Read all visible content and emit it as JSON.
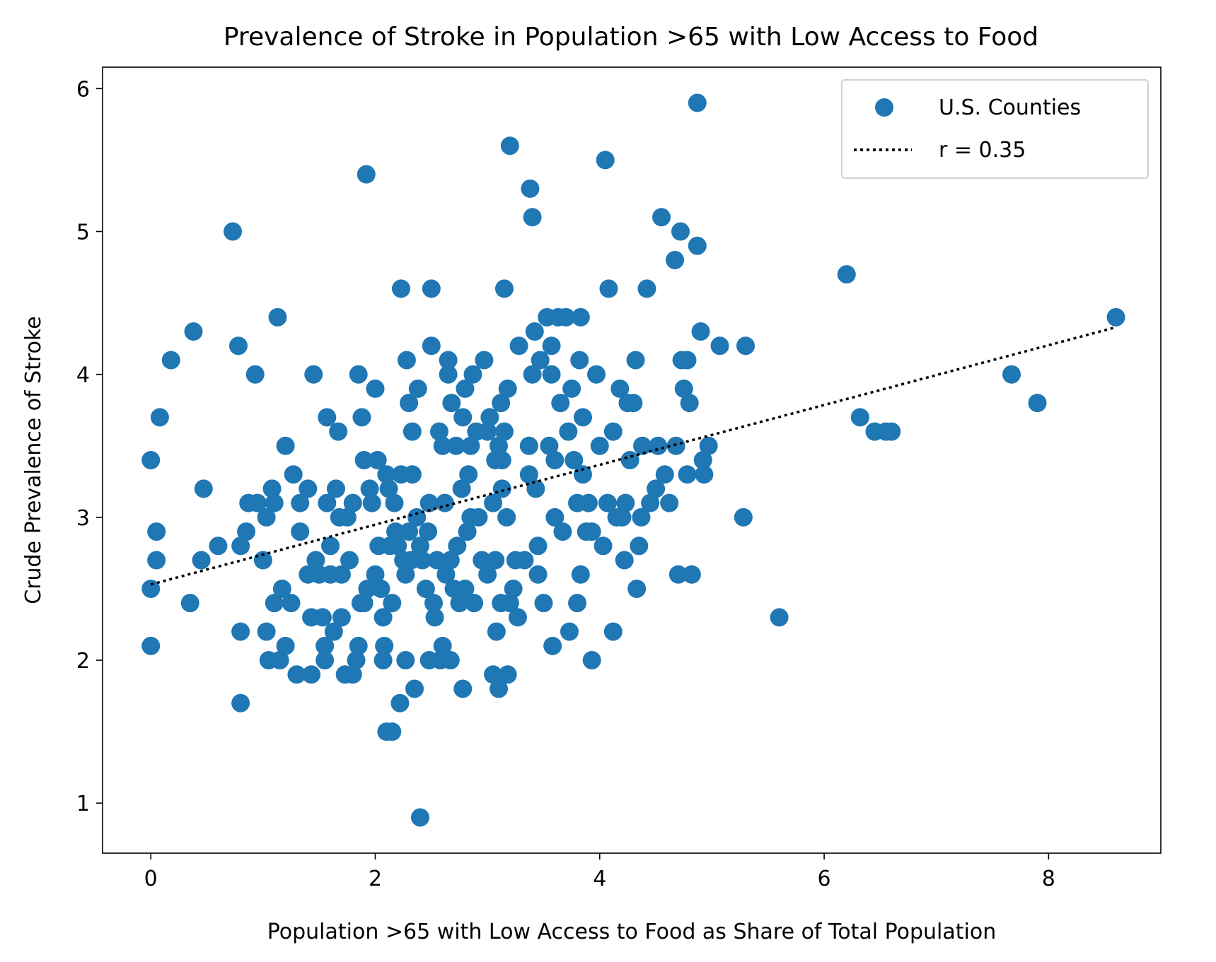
{
  "chart_data": {
    "type": "scatter",
    "title": "Prevalence of Stroke in Population >65 with Low Access to Food",
    "xlabel": "Population >65 with Low Access to Food as Share of Total Population",
    "ylabel": "Crude Prevalence of Stroke",
    "xlim": [
      -0.43,
      9.0
    ],
    "ylim": [
      0.65,
      6.15
    ],
    "xticks": [
      0,
      2,
      4,
      6,
      8
    ],
    "yticks": [
      1,
      2,
      3,
      4,
      5,
      6
    ],
    "grid": false,
    "legend_position": "top-right",
    "colors": {
      "points": "#1f77b4",
      "trendline": "#000000"
    },
    "series": [
      {
        "name": "U.S. Counties",
        "kind": "scatter",
        "points": [
          [
            0.0,
            3.4
          ],
          [
            0.0,
            2.5
          ],
          [
            0.0,
            2.1
          ],
          [
            0.05,
            2.9
          ],
          [
            0.05,
            2.7
          ],
          [
            0.08,
            3.7
          ],
          [
            0.18,
            4.1
          ],
          [
            0.35,
            2.4
          ],
          [
            0.38,
            4.3
          ],
          [
            0.45,
            2.7
          ],
          [
            0.47,
            3.2
          ],
          [
            0.6,
            2.8
          ],
          [
            0.73,
            5.0
          ],
          [
            0.78,
            4.2
          ],
          [
            0.8,
            2.2
          ],
          [
            0.8,
            1.7
          ],
          [
            0.8,
            2.8
          ],
          [
            0.85,
            2.9
          ],
          [
            0.87,
            3.1
          ],
          [
            0.93,
            4.0
          ],
          [
            0.95,
            3.1
          ],
          [
            1.0,
            2.7
          ],
          [
            1.03,
            3.0
          ],
          [
            1.03,
            2.2
          ],
          [
            1.05,
            2.0
          ],
          [
            1.08,
            3.2
          ],
          [
            1.1,
            2.4
          ],
          [
            1.1,
            3.1
          ],
          [
            1.13,
            4.4
          ],
          [
            1.15,
            2.0
          ],
          [
            1.17,
            2.5
          ],
          [
            1.2,
            3.5
          ],
          [
            1.2,
            2.1
          ],
          [
            1.25,
            2.4
          ],
          [
            1.27,
            3.3
          ],
          [
            1.3,
            1.9
          ],
          [
            1.33,
            2.9
          ],
          [
            1.33,
            3.1
          ],
          [
            1.4,
            2.6
          ],
          [
            1.4,
            3.2
          ],
          [
            1.43,
            1.9
          ],
          [
            1.43,
            2.3
          ],
          [
            1.45,
            4.0
          ],
          [
            1.47,
            2.7
          ],
          [
            1.5,
            2.6
          ],
          [
            1.53,
            2.3
          ],
          [
            1.55,
            2.1
          ],
          [
            1.55,
            2.0
          ],
          [
            1.57,
            3.7
          ],
          [
            1.57,
            3.1
          ],
          [
            1.6,
            2.8
          ],
          [
            1.6,
            2.6
          ],
          [
            1.63,
            2.2
          ],
          [
            1.65,
            3.2
          ],
          [
            1.67,
            3.6
          ],
          [
            1.68,
            3.0
          ],
          [
            1.7,
            2.3
          ],
          [
            1.7,
            2.6
          ],
          [
            1.73,
            1.9
          ],
          [
            1.75,
            3.0
          ],
          [
            1.77,
            2.7
          ],
          [
            1.8,
            3.1
          ],
          [
            1.8,
            1.9
          ],
          [
            1.83,
            2.0
          ],
          [
            1.85,
            4.0
          ],
          [
            1.85,
            2.1
          ],
          [
            1.87,
            2.4
          ],
          [
            1.88,
            3.7
          ],
          [
            1.9,
            3.4
          ],
          [
            1.9,
            2.4
          ],
          [
            1.92,
            5.4
          ],
          [
            1.93,
            2.5
          ],
          [
            1.95,
            3.2
          ],
          [
            1.97,
            3.1
          ],
          [
            2.0,
            3.9
          ],
          [
            2.0,
            2.6
          ],
          [
            2.02,
            3.4
          ],
          [
            2.03,
            2.8
          ],
          [
            2.05,
            2.5
          ],
          [
            2.07,
            2.0
          ],
          [
            2.07,
            2.3
          ],
          [
            2.08,
            2.1
          ],
          [
            2.1,
            1.5
          ],
          [
            2.1,
            3.3
          ],
          [
            2.12,
            3.2
          ],
          [
            2.13,
            2.8
          ],
          [
            2.15,
            2.4
          ],
          [
            2.15,
            1.5
          ],
          [
            2.17,
            3.1
          ],
          [
            2.18,
            2.9
          ],
          [
            2.2,
            2.8
          ],
          [
            2.22,
            1.7
          ],
          [
            2.23,
            3.3
          ],
          [
            2.23,
            4.6
          ],
          [
            2.25,
            2.7
          ],
          [
            2.27,
            2.6
          ],
          [
            2.27,
            2.0
          ],
          [
            2.28,
            4.1
          ],
          [
            2.3,
            2.9
          ],
          [
            2.3,
            3.8
          ],
          [
            2.32,
            2.7
          ],
          [
            2.33,
            3.3
          ],
          [
            2.33,
            3.6
          ],
          [
            2.35,
            1.8
          ],
          [
            2.37,
            3.0
          ],
          [
            2.38,
            3.9
          ],
          [
            2.4,
            2.8
          ],
          [
            2.4,
            0.9
          ],
          [
            2.42,
            2.7
          ],
          [
            2.45,
            2.5
          ],
          [
            2.47,
            2.9
          ],
          [
            2.48,
            2.0
          ],
          [
            2.48,
            3.1
          ],
          [
            2.5,
            4.2
          ],
          [
            2.5,
            4.6
          ],
          [
            2.52,
            2.4
          ],
          [
            2.53,
            2.3
          ],
          [
            2.55,
            2.7
          ],
          [
            2.57,
            3.6
          ],
          [
            2.58,
            2.0
          ],
          [
            2.6,
            2.1
          ],
          [
            2.6,
            3.5
          ],
          [
            2.62,
            3.1
          ],
          [
            2.63,
            2.6
          ],
          [
            2.65,
            4.0
          ],
          [
            2.65,
            4.1
          ],
          [
            2.67,
            2.0
          ],
          [
            2.67,
            2.7
          ],
          [
            2.68,
            3.8
          ],
          [
            2.7,
            2.5
          ],
          [
            2.72,
            3.5
          ],
          [
            2.73,
            2.8
          ],
          [
            2.75,
            2.4
          ],
          [
            2.77,
            3.2
          ],
          [
            2.78,
            3.7
          ],
          [
            2.78,
            1.8
          ],
          [
            2.8,
            3.9
          ],
          [
            2.8,
            2.5
          ],
          [
            2.82,
            2.9
          ],
          [
            2.83,
            3.3
          ],
          [
            2.85,
            3.5
          ],
          [
            2.85,
            3.0
          ],
          [
            2.87,
            4.0
          ],
          [
            2.88,
            2.4
          ],
          [
            2.9,
            3.6
          ],
          [
            2.92,
            3.0
          ],
          [
            2.95,
            2.7
          ],
          [
            2.97,
            4.1
          ],
          [
            3.0,
            2.6
          ],
          [
            3.0,
            3.6
          ],
          [
            3.02,
            3.7
          ],
          [
            3.05,
            1.9
          ],
          [
            3.05,
            3.1
          ],
          [
            3.07,
            3.4
          ],
          [
            3.07,
            2.7
          ],
          [
            3.08,
            2.2
          ],
          [
            3.1,
            1.8
          ],
          [
            3.1,
            3.5
          ],
          [
            3.12,
            2.4
          ],
          [
            3.12,
            3.8
          ],
          [
            3.13,
            3.2
          ],
          [
            3.13,
            3.4
          ],
          [
            3.15,
            3.6
          ],
          [
            3.15,
            4.6
          ],
          [
            3.17,
            3.0
          ],
          [
            3.18,
            3.9
          ],
          [
            3.18,
            1.9
          ],
          [
            3.2,
            5.6
          ],
          [
            3.2,
            2.4
          ],
          [
            3.23,
            2.5
          ],
          [
            3.25,
            2.7
          ],
          [
            3.27,
            2.3
          ],
          [
            3.28,
            4.2
          ],
          [
            3.33,
            2.7
          ],
          [
            3.37,
            3.3
          ],
          [
            3.37,
            3.5
          ],
          [
            3.38,
            5.3
          ],
          [
            3.4,
            5.1
          ],
          [
            3.4,
            4.0
          ],
          [
            3.42,
            4.3
          ],
          [
            3.43,
            3.2
          ],
          [
            3.45,
            2.8
          ],
          [
            3.45,
            2.6
          ],
          [
            3.47,
            4.1
          ],
          [
            3.5,
            2.4
          ],
          [
            3.53,
            4.4
          ],
          [
            3.55,
            3.5
          ],
          [
            3.57,
            4.2
          ],
          [
            3.57,
            4.0
          ],
          [
            3.58,
            2.1
          ],
          [
            3.6,
            3.0
          ],
          [
            3.6,
            3.4
          ],
          [
            3.63,
            4.4
          ],
          [
            3.65,
            3.8
          ],
          [
            3.67,
            2.9
          ],
          [
            3.7,
            4.4
          ],
          [
            3.72,
            3.6
          ],
          [
            3.73,
            2.2
          ],
          [
            3.75,
            3.9
          ],
          [
            3.77,
            3.4
          ],
          [
            3.8,
            2.4
          ],
          [
            3.8,
            3.1
          ],
          [
            3.82,
            4.1
          ],
          [
            3.83,
            4.4
          ],
          [
            3.83,
            2.6
          ],
          [
            3.85,
            3.7
          ],
          [
            3.85,
            3.3
          ],
          [
            3.88,
            2.9
          ],
          [
            3.9,
            3.1
          ],
          [
            3.93,
            2.9
          ],
          [
            3.93,
            2.0
          ],
          [
            3.97,
            4.0
          ],
          [
            4.0,
            3.5
          ],
          [
            4.03,
            2.8
          ],
          [
            4.05,
            5.5
          ],
          [
            4.07,
            3.1
          ],
          [
            4.08,
            4.6
          ],
          [
            4.12,
            3.6
          ],
          [
            4.12,
            2.2
          ],
          [
            4.15,
            3.0
          ],
          [
            4.18,
            3.9
          ],
          [
            4.2,
            3.0
          ],
          [
            4.22,
            2.7
          ],
          [
            4.23,
            3.1
          ],
          [
            4.25,
            3.8
          ],
          [
            4.27,
            3.4
          ],
          [
            4.3,
            3.8
          ],
          [
            4.32,
            4.1
          ],
          [
            4.33,
            2.5
          ],
          [
            4.35,
            2.8
          ],
          [
            4.37,
            3.0
          ],
          [
            4.38,
            3.5
          ],
          [
            4.42,
            4.6
          ],
          [
            4.45,
            3.1
          ],
          [
            4.5,
            3.2
          ],
          [
            4.52,
            3.5
          ],
          [
            4.55,
            5.1
          ],
          [
            4.58,
            3.3
          ],
          [
            4.62,
            3.1
          ],
          [
            4.67,
            4.8
          ],
          [
            4.68,
            3.5
          ],
          [
            4.7,
            2.6
          ],
          [
            4.72,
            5.0
          ],
          [
            4.73,
            4.1
          ],
          [
            4.75,
            3.9
          ],
          [
            4.78,
            4.1
          ],
          [
            4.78,
            3.3
          ],
          [
            4.8,
            3.8
          ],
          [
            4.82,
            2.6
          ],
          [
            4.87,
            5.9
          ],
          [
            4.87,
            4.9
          ],
          [
            4.9,
            4.3
          ],
          [
            4.92,
            3.4
          ],
          [
            4.93,
            3.3
          ],
          [
            4.97,
            3.5
          ],
          [
            5.07,
            4.2
          ],
          [
            5.28,
            3.0
          ],
          [
            5.3,
            4.2
          ],
          [
            5.6,
            2.3
          ],
          [
            6.2,
            4.7
          ],
          [
            6.32,
            3.7
          ],
          [
            6.45,
            3.6
          ],
          [
            6.55,
            3.6
          ],
          [
            6.6,
            3.6
          ],
          [
            7.67,
            4.0
          ],
          [
            7.9,
            3.8
          ],
          [
            8.6,
            4.4
          ]
        ]
      },
      {
        "name": "r = 0.35",
        "kind": "trendline",
        "x": [
          0.0,
          8.6
        ],
        "y": [
          2.53,
          4.33
        ]
      }
    ]
  }
}
